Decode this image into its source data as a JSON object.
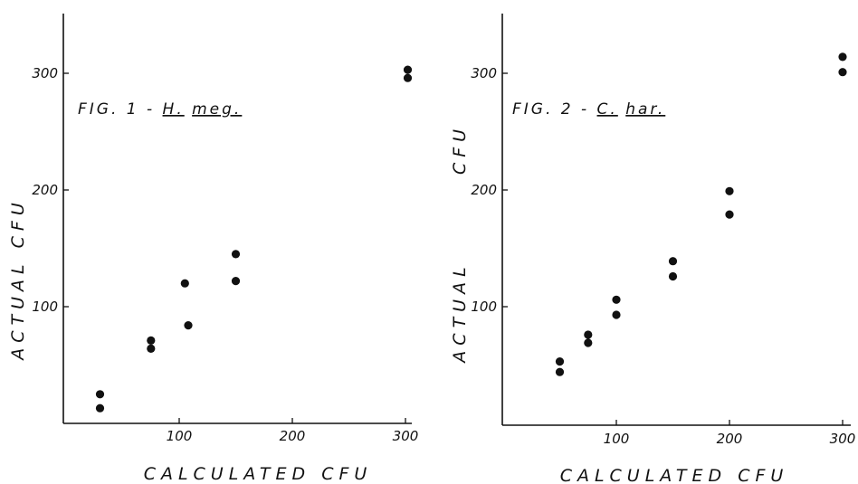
{
  "chart_data": [
    {
      "type": "scatter",
      "title": "FIG. 1 - H. meg.",
      "title_parts": {
        "prefix": "FIG. 1 - ",
        "genus": "H.",
        "species": "meg."
      },
      "xlabel": "CALCULATED CFU",
      "ylabel": "ACTUAL CFU",
      "xlim": [
        0,
        310
      ],
      "ylim": [
        0,
        350
      ],
      "xticks": [
        "100",
        "200",
        "300"
      ],
      "yticks": [
        "100",
        "200",
        "300"
      ],
      "grid": false,
      "points": [
        {
          "x": 30,
          "y": 25
        },
        {
          "x": 30,
          "y": 13
        },
        {
          "x": 75,
          "y": 71
        },
        {
          "x": 75,
          "y": 64
        },
        {
          "x": 105,
          "y": 120
        },
        {
          "x": 108,
          "y": 84
        },
        {
          "x": 150,
          "y": 145
        },
        {
          "x": 150,
          "y": 122
        },
        {
          "x": 302,
          "y": 303
        },
        {
          "x": 302,
          "y": 296
        }
      ]
    },
    {
      "type": "scatter",
      "title": "FIG. 2 - C. har.",
      "title_parts": {
        "prefix": "FIG. 2 - ",
        "genus": "C.",
        "species": "har."
      },
      "xlabel": "CALCULATED CFU",
      "ylabel": "ACTUAL CFU",
      "ylabel_parts": [
        "ACTUAL",
        "CFU"
      ],
      "xlim": [
        0,
        310
      ],
      "ylim": [
        0,
        350
      ],
      "xticks": [
        "100",
        "200",
        "300"
      ],
      "yticks": [
        "100",
        "200",
        "300"
      ],
      "grid": false,
      "points": [
        {
          "x": 50,
          "y": 53
        },
        {
          "x": 50,
          "y": 44
        },
        {
          "x": 75,
          "y": 76
        },
        {
          "x": 75,
          "y": 69
        },
        {
          "x": 100,
          "y": 106
        },
        {
          "x": 100,
          "y": 93
        },
        {
          "x": 150,
          "y": 139
        },
        {
          "x": 150,
          "y": 126
        },
        {
          "x": 200,
          "y": 199
        },
        {
          "x": 200,
          "y": 179
        },
        {
          "x": 300,
          "y": 314
        },
        {
          "x": 300,
          "y": 301
        }
      ]
    }
  ]
}
